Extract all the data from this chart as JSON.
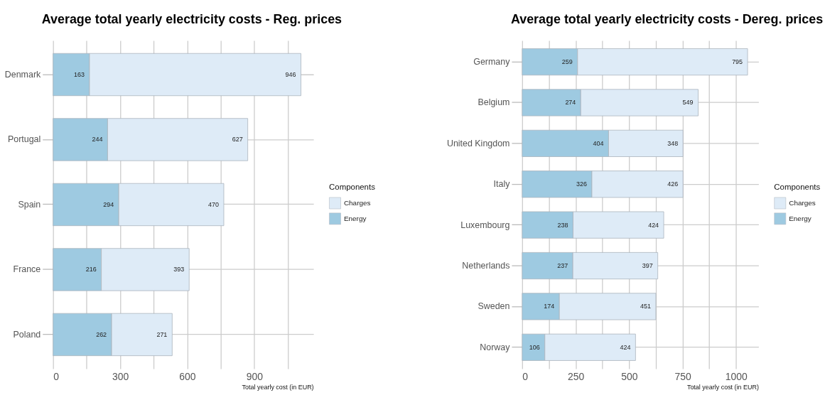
{
  "chart_data": [
    {
      "type": "bar",
      "title": "Average total yearly electricity costs - Reg. prices",
      "orientation": "horizontal",
      "stacked": true,
      "categories": [
        "Denmark",
        "Portugal",
        "Spain",
        "France",
        "Poland"
      ],
      "series": [
        {
          "name": "Energy",
          "color": "#9ecae1",
          "values": [
            163,
            244,
            294,
            216,
            262
          ]
        },
        {
          "name": "Charges",
          "color": "#deebf7",
          "values": [
            946,
            627,
            470,
            393,
            271
          ]
        }
      ],
      "xlabel": "Total yearly cost (in EUR)",
      "xlim": [
        0,
        1165
      ],
      "xticks": [
        0,
        {
          "value": 150,
          "label": null
        },
        300,
        {
          "value": 450,
          "label": null
        },
        600,
        {
          "value": 750,
          "label": null
        },
        900,
        {
          "value": 1050,
          "label": null
        }
      ],
      "legend_title": "Components",
      "legend": "right",
      "data_labels": true,
      "grid": true
    },
    {
      "type": "bar",
      "title": "Average total yearly electricity costs - Dereg. prices",
      "orientation": "horizontal",
      "stacked": true,
      "categories": [
        "Germany",
        "Belgium",
        "United Kingdom",
        "Italy",
        "Luxembourg",
        "Netherlands",
        "Sweden",
        "Norway"
      ],
      "series": [
        {
          "name": "Energy",
          "color": "#9ecae1",
          "values": [
            259,
            274,
            404,
            326,
            238,
            237,
            174,
            106
          ]
        },
        {
          "name": "Charges",
          "color": "#deebf7",
          "values": [
            795,
            549,
            348,
            426,
            424,
            397,
            451,
            424
          ]
        }
      ],
      "xlabel": "Total yearly cost (in EUR)",
      "xlim": [
        0,
        1105
      ],
      "xticks": [
        0,
        {
          "value": 125,
          "label": null
        },
        250,
        {
          "value": 375,
          "label": null
        },
        500,
        {
          "value": 625,
          "label": null
        },
        750,
        {
          "value": 875,
          "label": null
        },
        1000
      ],
      "legend_title": "Components",
      "legend": "right",
      "data_labels": true,
      "grid": true
    }
  ]
}
